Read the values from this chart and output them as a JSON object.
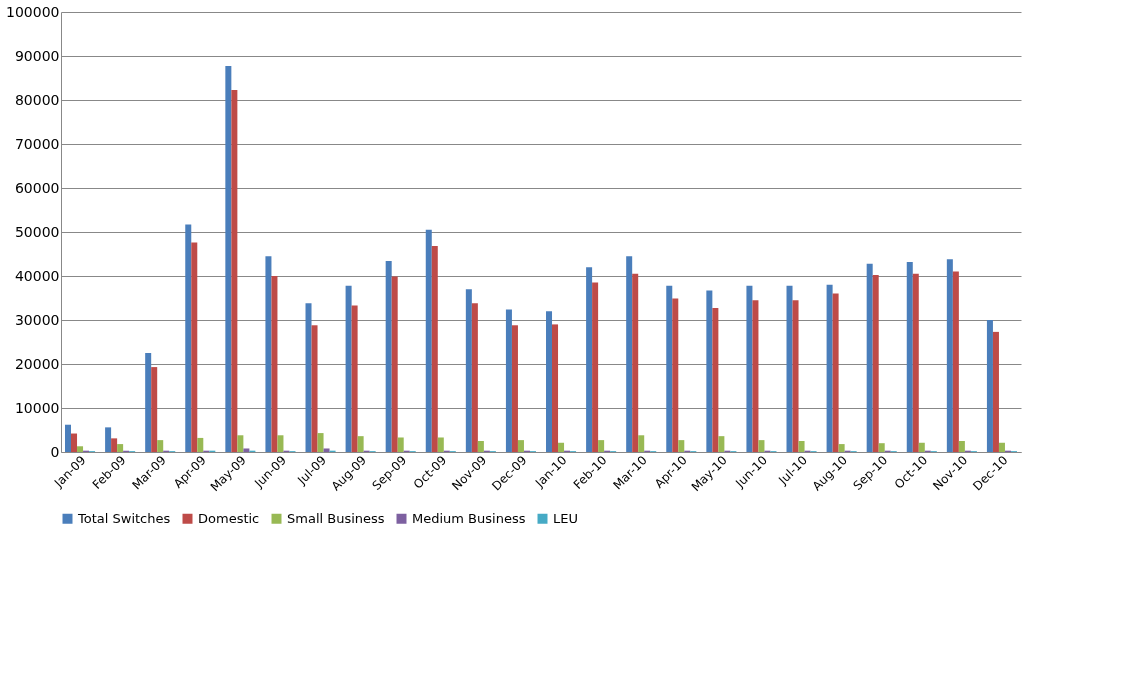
{
  "chart_data": {
    "type": "bar",
    "categories": [
      "Jan-09",
      "Feb-09",
      "Mar-09",
      "Apr-09",
      "May-09",
      "Jun-09",
      "Jul-09",
      "Aug-09",
      "Sep-09",
      "Oct-09",
      "Nov-09",
      "Dec-09",
      "Jan-10",
      "Feb-10",
      "Mar-10",
      "Apr-10",
      "May-10",
      "Jun-10",
      "Jul-10",
      "Aug-10",
      "Sep-10",
      "Oct-10",
      "Nov-10",
      "Dec-10"
    ],
    "series": [
      {
        "name": "Total Switches",
        "color": "#4a7ebb",
        "values": [
          6200,
          5600,
          22500,
          51700,
          87700,
          44500,
          33800,
          37800,
          43400,
          50500,
          37000,
          32400,
          32000,
          42000,
          44500,
          37800,
          36700,
          37800,
          37800,
          38000,
          42800,
          43200,
          43800,
          30000
        ]
      },
      {
        "name": "Domestic",
        "color": "#be4b48",
        "values": [
          4200,
          3100,
          19300,
          47600,
          82300,
          40000,
          28800,
          33300,
          39900,
          46800,
          33800,
          28800,
          29000,
          38500,
          40500,
          34900,
          32700,
          34500,
          34500,
          36000,
          40200,
          40500,
          41000,
          27300
        ]
      },
      {
        "name": "Small Business",
        "color": "#98b954",
        "values": [
          1300,
          1800,
          2700,
          3200,
          3800,
          3800,
          4300,
          3600,
          3300,
          3300,
          2500,
          2700,
          2100,
          2700,
          3800,
          2700,
          3600,
          2700,
          2500,
          1800,
          2000,
          2100,
          2500,
          2100
        ]
      },
      {
        "name": "Medium Business",
        "color": "#7d60a0",
        "values": [
          300,
          300,
          300,
          300,
          800,
          300,
          800,
          300,
          300,
          300,
          300,
          300,
          300,
          300,
          300,
          300,
          300,
          300,
          300,
          300,
          300,
          300,
          300,
          300
        ]
      },
      {
        "name": "LEU",
        "color": "#46aac5",
        "values": [
          200,
          200,
          200,
          300,
          300,
          200,
          300,
          200,
          200,
          200,
          200,
          200,
          200,
          200,
          200,
          200,
          200,
          200,
          200,
          200,
          200,
          200,
          200,
          200
        ]
      }
    ],
    "ylim": [
      0,
      100000
    ],
    "yticks": [
      0,
      10000,
      20000,
      30000,
      40000,
      50000,
      60000,
      70000,
      80000,
      90000,
      100000
    ],
    "grid": "y",
    "legend": "bottom"
  }
}
